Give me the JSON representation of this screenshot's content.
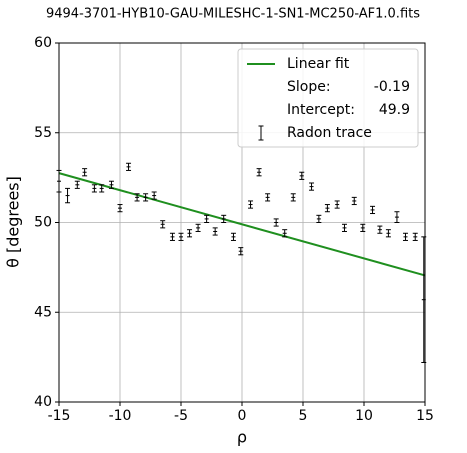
{
  "chart_data": {
    "type": "scatter",
    "title": "9494-3701-HYB10-GAU-MILESHC-1-SN1-MC250-AF1.0.fits",
    "xlabel": "ρ",
    "ylabel": "θ [degrees]",
    "xlim": [
      -15,
      15
    ],
    "ylim": [
      40,
      60
    ],
    "xticks": [
      -15,
      -10,
      -5,
      0,
      5,
      10,
      15
    ],
    "yticks": [
      40,
      45,
      50,
      55,
      60
    ],
    "grid": true,
    "legend": "upper right",
    "x": [
      -15,
      -14.3,
      -13.5,
      -12.9,
      -12.1,
      -11.5,
      -10.7,
      -10,
      -9.3,
      -8.6,
      -7.9,
      -7.2,
      -6.5,
      -5.7,
      -5,
      -4.3,
      -3.6,
      -2.9,
      -2.2,
      -1.5,
      -0.7,
      -0.1,
      0.7,
      1.4,
      2.1,
      2.8,
      3.5,
      4.2,
      4.9,
      5.7,
      6.3,
      7.0,
      7.8,
      8.4,
      9.2,
      9.9,
      10.7,
      11.3,
      12.0,
      12.7,
      13.4,
      14.2,
      14.9
    ],
    "series": [
      {
        "name": "Radon trace",
        "color": "#000000",
        "values": [
          52.3,
          51.5,
          52.1,
          52.8,
          51.9,
          51.9,
          52.1,
          50.8,
          53.1,
          51.4,
          51.4,
          51.5,
          49.9,
          49.2,
          49.2,
          49.4,
          49.7,
          50.2,
          49.5,
          50.2,
          49.2,
          48.4,
          51.0,
          52.8,
          51.4,
          50.0,
          49.4,
          51.4,
          52.6,
          52.0,
          50.2,
          50.8,
          51.0,
          49.7,
          51.2,
          49.7,
          50.7,
          49.6,
          49.4,
          50.3,
          49.2,
          49.2,
          45.7
        ],
        "errors": [
          0.6,
          0.4,
          0.2,
          0.2,
          0.2,
          0.2,
          0.2,
          0.2,
          0.2,
          0.2,
          0.2,
          0.2,
          0.2,
          0.2,
          0.2,
          0.2,
          0.2,
          0.2,
          0.2,
          0.2,
          0.2,
          0.2,
          0.2,
          0.2,
          0.2,
          0.2,
          0.2,
          0.2,
          0.2,
          0.2,
          0.2,
          0.2,
          0.2,
          0.2,
          0.2,
          0.2,
          0.2,
          0.2,
          0.2,
          0.3,
          0.2,
          0.2,
          3.5
        ]
      }
    ],
    "fit": {
      "name": "Linear fit",
      "color": "#1f8f1f",
      "slope_label": "Slope:",
      "slope": -0.19,
      "intercept_label": "Intercept:",
      "intercept": 49.9
    }
  }
}
